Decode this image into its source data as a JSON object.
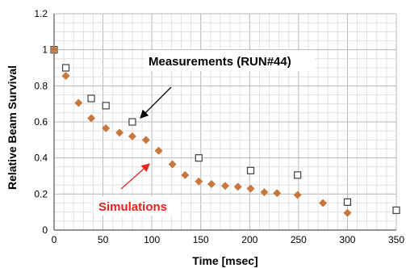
{
  "chart_data": {
    "type": "scatter",
    "title": "",
    "xlabel": "Time [msec]",
    "ylabel": "Relative Beam Survival",
    "xlim": [
      0,
      350
    ],
    "ylim": [
      0,
      1.2
    ],
    "x_ticks": [
      "0",
      "50",
      "100",
      "150",
      "200",
      "250",
      "300",
      "350"
    ],
    "y_ticks": [
      "0",
      "0.2",
      "0.4",
      "0.6",
      "0.8",
      "1",
      "1.2"
    ],
    "grid": true,
    "series": [
      {
        "name": "Measurements (RUN#44)",
        "marker": "open-square",
        "color": "#404040",
        "x": [
          0,
          12,
          38,
          53,
          80,
          148,
          201,
          249,
          300,
          350
        ],
        "y": [
          1.0,
          0.9,
          0.73,
          0.69,
          0.6,
          0.4,
          0.33,
          0.305,
          0.155,
          0.11
        ]
      },
      {
        "name": "Simulations",
        "marker": "filled-diamond",
        "color": "#c8783c",
        "x": [
          0,
          12,
          25,
          38,
          53,
          67,
          80,
          94,
          107,
          121,
          134,
          148,
          161,
          175,
          188,
          201,
          215,
          228,
          249,
          275,
          300
        ],
        "y": [
          1.0,
          0.855,
          0.705,
          0.62,
          0.565,
          0.54,
          0.52,
          0.5,
          0.44,
          0.365,
          0.305,
          0.27,
          0.255,
          0.245,
          0.24,
          0.23,
          0.21,
          0.205,
          0.195,
          0.15,
          0.095
        ]
      }
    ],
    "annotations": [
      {
        "text": "Measurements (RUN#44)",
        "color": "#000000",
        "arrow_color": "#000000"
      },
      {
        "text": "Simulations",
        "color": "#e8231e",
        "arrow_color": "#e8231e"
      }
    ]
  }
}
